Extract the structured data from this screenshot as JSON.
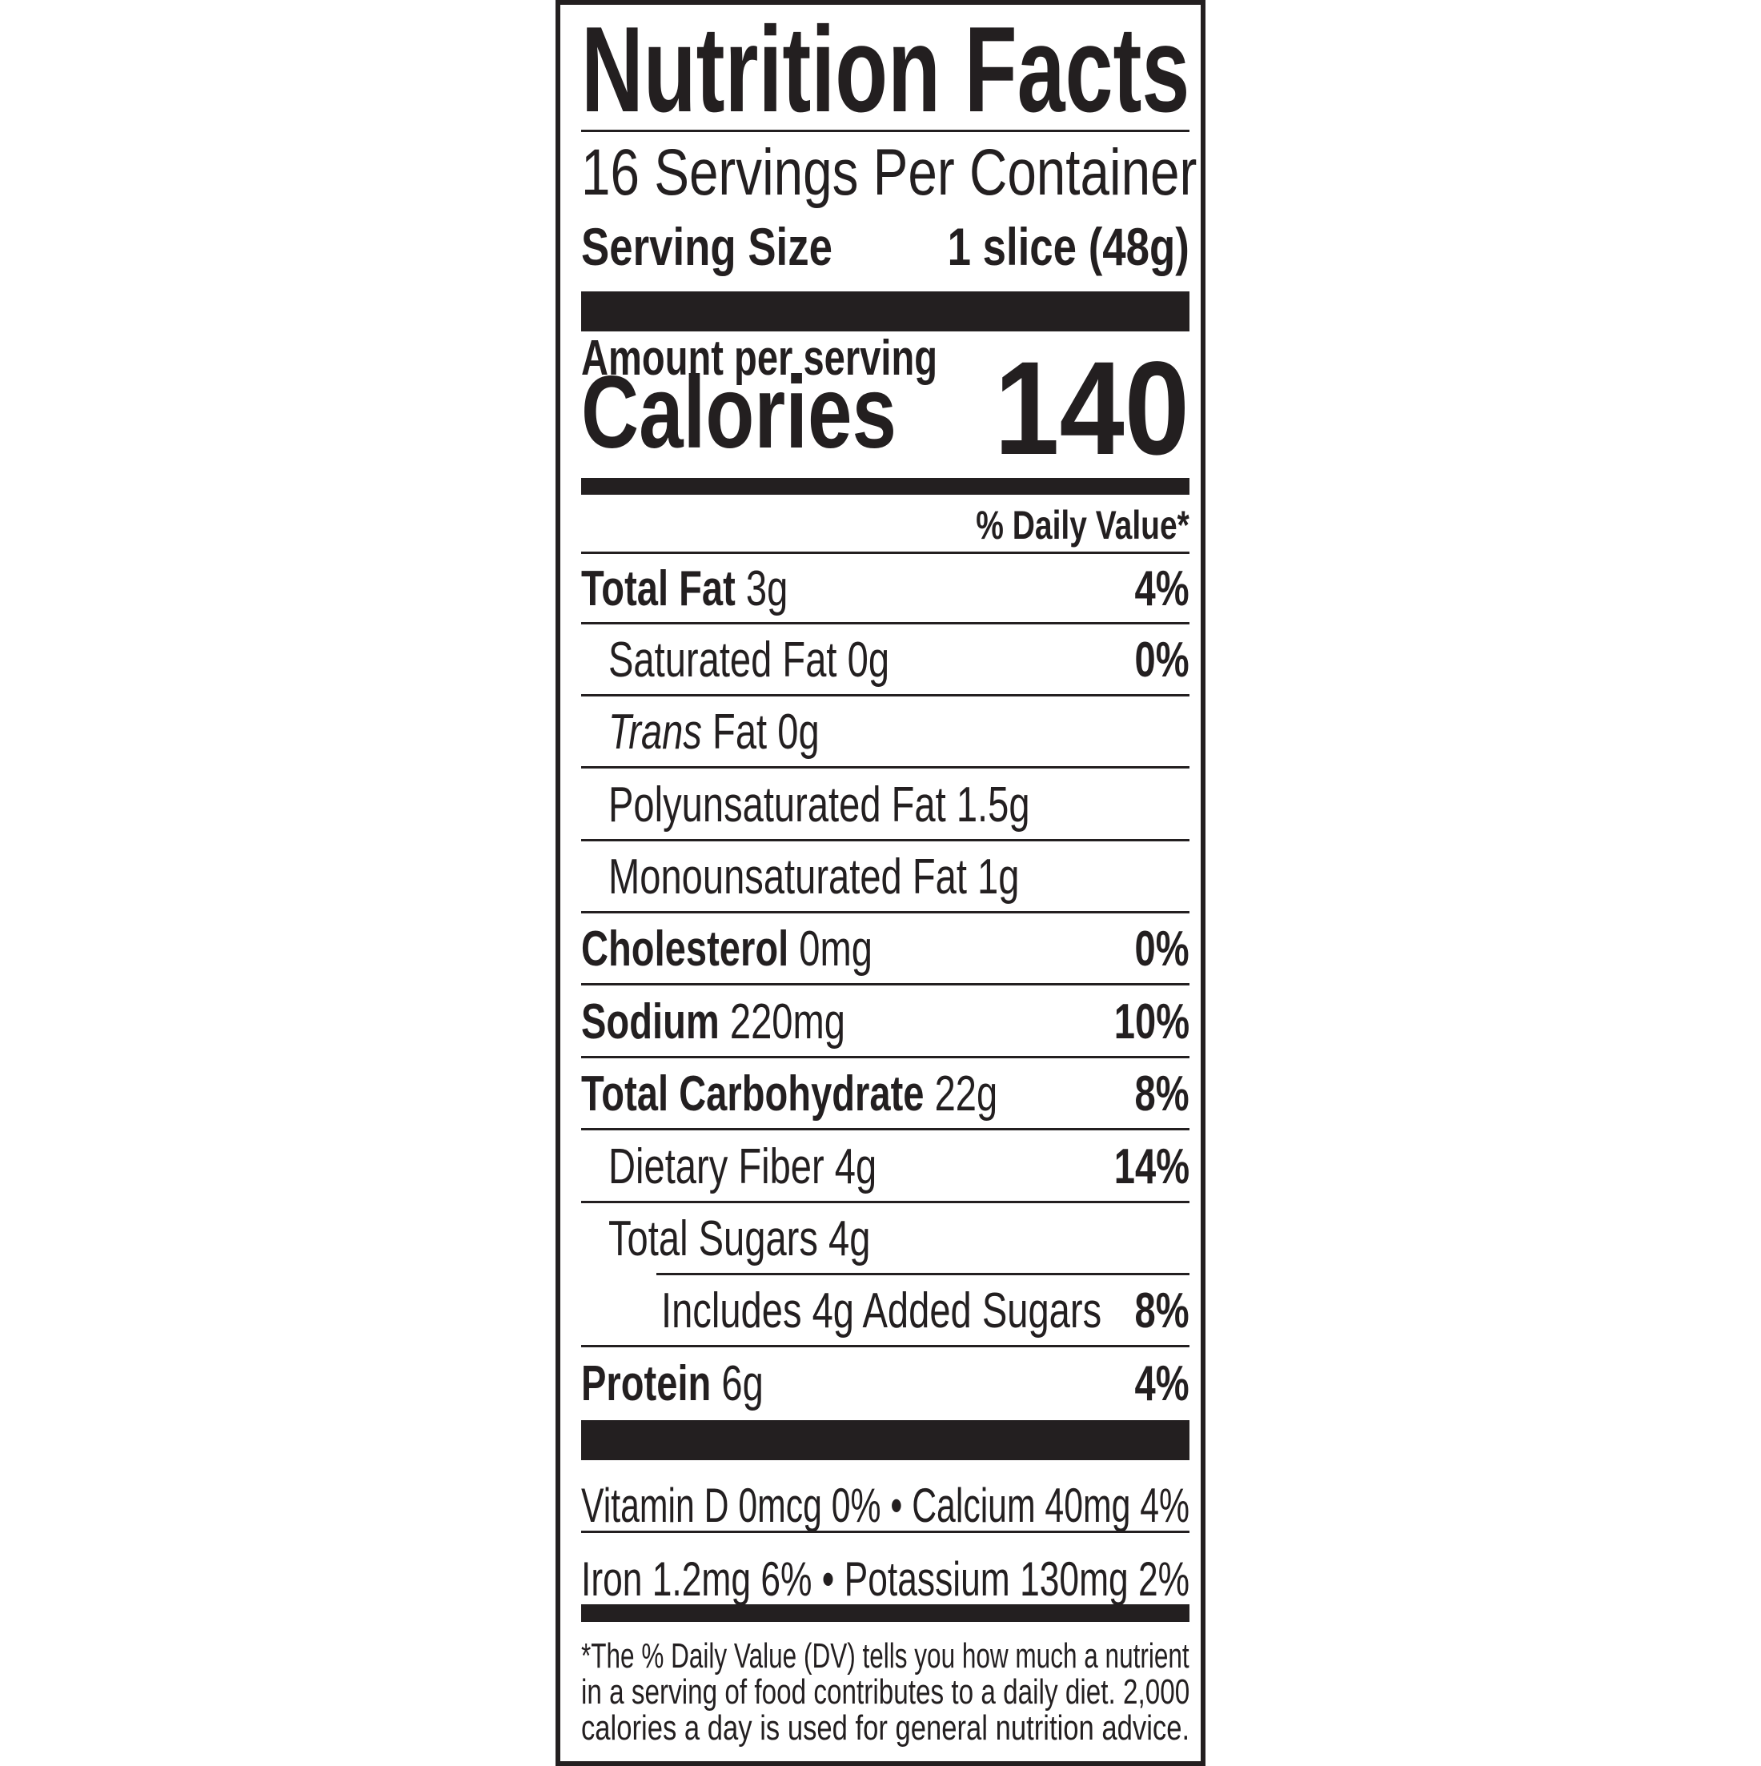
{
  "title": "Nutrition Facts",
  "servings_per_container": "16 Servings Per Container",
  "serving_size": {
    "label": "Serving Size",
    "value": "1 slice (48g)"
  },
  "amount_per_serving": "Amount per serving",
  "calories": {
    "label": "Calories",
    "value": "140"
  },
  "daily_value_header": "% Daily Value*",
  "nutrients": [
    {
      "name": "Total Fat",
      "amount": "3g",
      "dv": "4%",
      "bold": true,
      "indent": 0
    },
    {
      "name": "Saturated Fat",
      "amount": "0g",
      "dv": "0%",
      "bold": false,
      "indent": 1
    },
    {
      "name": "Trans",
      "name_suffix": "Fat",
      "amount": "0g",
      "dv": "",
      "bold": false,
      "italic": true,
      "indent": 1
    },
    {
      "name": "Polyunsaturated Fat",
      "amount": "1.5g",
      "dv": "",
      "bold": false,
      "indent": 1
    },
    {
      "name": "Monounsaturated Fat",
      "amount": "1g",
      "dv": "",
      "bold": false,
      "indent": 1
    },
    {
      "name": "Cholesterol",
      "amount": "0mg",
      "dv": "0%",
      "bold": true,
      "indent": 0
    },
    {
      "name": "Sodium",
      "amount": "220mg",
      "dv": "10%",
      "bold": true,
      "indent": 0
    },
    {
      "name": "Total Carbohydrate",
      "amount": "22g",
      "dv": "8%",
      "bold": true,
      "indent": 0
    },
    {
      "name": "Dietary Fiber",
      "amount": "4g",
      "dv": "14%",
      "bold": false,
      "indent": 1
    },
    {
      "name": "Total Sugars",
      "amount": "4g",
      "dv": "",
      "bold": false,
      "indent": 1
    },
    {
      "name": "Includes 4g Added Sugars",
      "amount": "",
      "dv": "8%",
      "bold": false,
      "indent": 2
    },
    {
      "name": "Protein",
      "amount": "6g",
      "dv": "4%",
      "bold": true,
      "indent": 0
    }
  ],
  "vitamins": [
    "Vitamin D 0mcg 0%  •  Calcium 40mg 4%",
    "Iron 1.2mg 6%   •   Potassium 130mg 2%"
  ],
  "footnote": [
    "*The % Daily Value (DV) tells you how much a nutrient",
    "in a serving of food contributes to a daily diet. 2,000",
    "calories a day is used for general nutrition advice."
  ]
}
